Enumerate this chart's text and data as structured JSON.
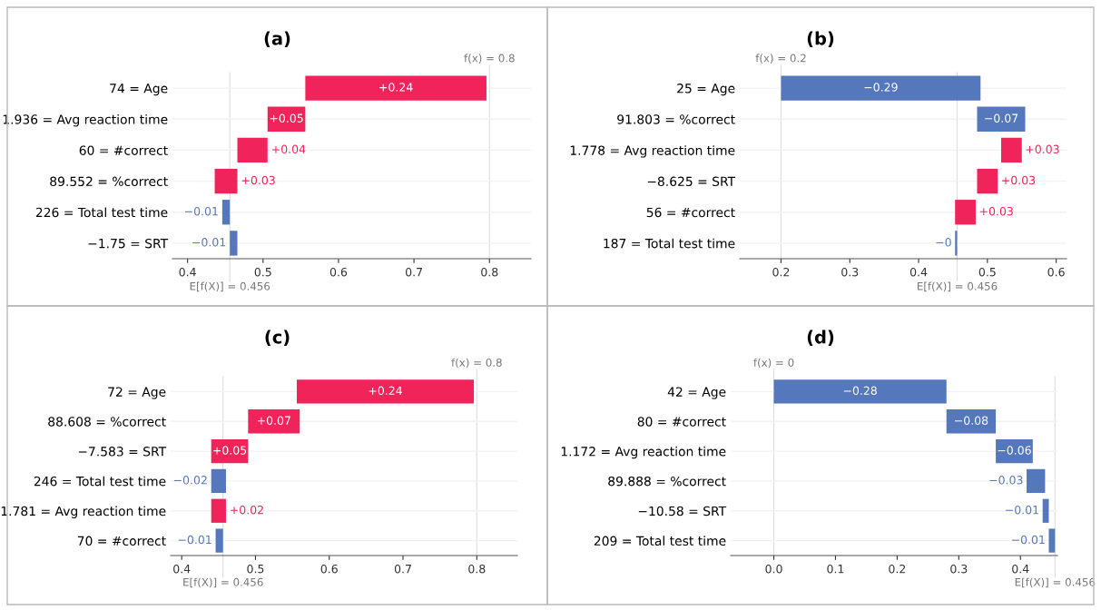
{
  "chart_data": [
    {
      "type": "bar",
      "orientation": "horizontal",
      "title": "(a)",
      "grid": "y",
      "categories": [
        "74 = Age",
        "1.936 = Avg reaction time",
        "60 = #correct",
        "89.552 = %correct",
        "226 = Total test time",
        "−1.75 = SRT"
      ],
      "values": [
        0.24,
        0.05,
        0.04,
        0.03,
        -0.01,
        -0.01
      ],
      "base": [
        0.556,
        0.506,
        0.466,
        0.436,
        0.456,
        0.466
      ],
      "value_labels": [
        "+0.24",
        "+0.05",
        "+0.04",
        "+0.03",
        "−0.01",
        "−0.01"
      ],
      "colors": [
        "#f0245a",
        "#f0245a",
        "#f0245a",
        "#f0245a",
        "#5577bb",
        "#5577bb"
      ],
      "xlim": [
        0.38,
        0.855
      ],
      "xticks": [
        0.4,
        0.5,
        0.6,
        0.7,
        0.8
      ],
      "ref_lines": [
        {
          "axis": "x",
          "value": 0.8,
          "label": "f(x) = 0.8",
          "color": "#dddddd"
        },
        {
          "axis": "x",
          "value": 0.456,
          "label": "E[f(X)] = 0.456",
          "color": "#dddddd"
        }
      ]
    },
    {
      "type": "bar",
      "orientation": "horizontal",
      "title": "(b)",
      "grid": "y",
      "categories": [
        "25 = Age",
        "91.803 = %correct",
        "1.778 = Avg reaction time",
        "−8.625 = SRT",
        "56 = #correct",
        "187 = Total test time"
      ],
      "values": [
        -0.29,
        -0.07,
        0.03,
        0.03,
        0.03,
        -0.003
      ],
      "base": [
        0.49,
        0.555,
        0.52,
        0.485,
        0.453,
        0.456
      ],
      "value_labels": [
        "−0.29",
        "−0.07",
        "+0.03",
        "+0.03",
        "+0.03",
        "−0"
      ],
      "colors": [
        "#5577bb",
        "#5577bb",
        "#f0245a",
        "#f0245a",
        "#f0245a",
        "#5577bb"
      ],
      "xlim": [
        0.14,
        0.615
      ],
      "xticks": [
        0.2,
        0.3,
        0.4,
        0.5,
        0.6
      ],
      "ref_lines": [
        {
          "axis": "x",
          "value": 0.2,
          "label": "f(x) = 0.2",
          "color": "#dddddd"
        },
        {
          "axis": "x",
          "value": 0.456,
          "label": "E[f(X)] = 0.456",
          "color": "#dddddd"
        }
      ]
    },
    {
      "type": "bar",
      "orientation": "horizontal",
      "title": "(c)",
      "grid": "y",
      "categories": [
        "72 = Age",
        "88.608 = %correct",
        "−7.583 = SRT",
        "246 = Total test time",
        "1.781 = Avg reaction time",
        "70 = #correct"
      ],
      "values": [
        0.24,
        0.07,
        0.05,
        -0.02,
        0.02,
        -0.01
      ],
      "base": [
        0.556,
        0.49,
        0.44,
        0.46,
        0.44,
        0.456
      ],
      "value_labels": [
        "+0.24",
        "+0.07",
        "+0.05",
        "−0.02",
        "+0.02",
        "−0.01"
      ],
      "colors": [
        "#f0245a",
        "#f0245a",
        "#f0245a",
        "#5577bb",
        "#f0245a",
        "#5577bb"
      ],
      "xlim": [
        0.385,
        0.855
      ],
      "xticks": [
        0.4,
        0.5,
        0.6,
        0.7,
        0.8
      ],
      "ref_lines": [
        {
          "axis": "x",
          "value": 0.8,
          "label": "f(x) = 0.8",
          "color": "#dddddd"
        },
        {
          "axis": "x",
          "value": 0.456,
          "label": "E[f(X)] = 0.456",
          "color": "#dddddd"
        }
      ]
    },
    {
      "type": "bar",
      "orientation": "horizontal",
      "title": "(d)",
      "grid": "y",
      "categories": [
        "42 = Age",
        "80 = #correct",
        "1.172 = Avg reaction time",
        "89.888 = %correct",
        "−10.58 = SRT",
        "209 = Total test time"
      ],
      "values": [
        -0.28,
        -0.08,
        -0.06,
        -0.03,
        -0.01,
        -0.01
      ],
      "base": [
        0.28,
        0.36,
        0.42,
        0.44,
        0.446,
        0.456
      ],
      "value_labels": [
        "−0.28",
        "−0.08",
        "−0.06",
        "−0.03",
        "−0.01",
        "−0.01"
      ],
      "colors": [
        "#5577bb",
        "#5577bb",
        "#5577bb",
        "#5577bb",
        "#5577bb",
        "#5577bb"
      ],
      "xlim": [
        -0.07,
        0.46
      ],
      "xticks": [
        {
          "value": 0,
          "label": "0.0"
        },
        0.1,
        0.2,
        0.3,
        0.4
      ],
      "ref_lines": [
        {
          "axis": "x",
          "value": 0,
          "label": "f(x) = 0",
          "color": "#dddddd"
        },
        {
          "axis": "x",
          "value": 0.456,
          "label": "E[f(X)] = 0.456",
          "color": "#dddddd"
        }
      ]
    }
  ]
}
